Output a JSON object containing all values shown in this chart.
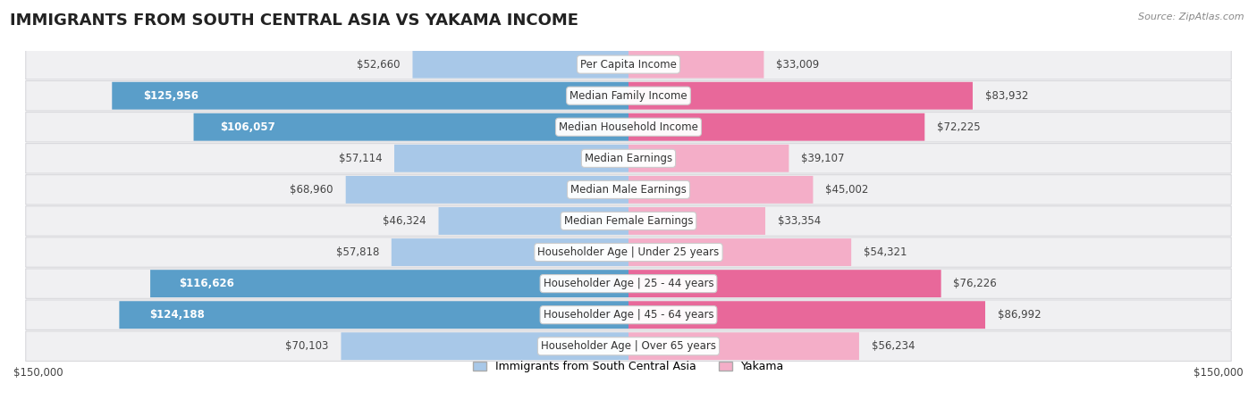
{
  "title": "IMMIGRANTS FROM SOUTH CENTRAL ASIA VS YAKAMA INCOME",
  "source": "Source: ZipAtlas.com",
  "categories": [
    "Per Capita Income",
    "Median Family Income",
    "Median Household Income",
    "Median Earnings",
    "Median Male Earnings",
    "Median Female Earnings",
    "Householder Age | Under 25 years",
    "Householder Age | 25 - 44 years",
    "Householder Age | 45 - 64 years",
    "Householder Age | Over 65 years"
  ],
  "immigrants_values": [
    52660,
    125956,
    106057,
    57114,
    68960,
    46324,
    57818,
    116626,
    124188,
    70103
  ],
  "yakama_values": [
    33009,
    83932,
    72225,
    39107,
    45002,
    33354,
    54321,
    76226,
    86992,
    56234
  ],
  "max_val": 150000,
  "color_immigrants_light": "#a8c8e8",
  "color_immigrants_dark": "#5a9ec9",
  "color_yakama_light": "#f4aec8",
  "color_yakama_dark": "#e8689a",
  "imm_dark_threshold": 100000,
  "yak_dark_threshold": 70000,
  "title_color": "#222222",
  "label_fontsize": 8.5,
  "value_fontsize": 8.5,
  "title_fontsize": 13,
  "imm_white_label_threshold": 80000,
  "yak_white_label_threshold": 999999
}
